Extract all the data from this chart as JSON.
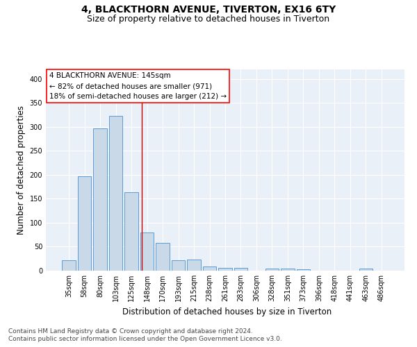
{
  "title": "4, BLACKTHORN AVENUE, TIVERTON, EX16 6TY",
  "subtitle": "Size of property relative to detached houses in Tiverton",
  "xlabel": "Distribution of detached houses by size in Tiverton",
  "ylabel": "Number of detached properties",
  "footnote1": "Contains HM Land Registry data © Crown copyright and database right 2024.",
  "footnote2": "Contains public sector information licensed under the Open Government Licence v3.0.",
  "bar_labels": [
    "35sqm",
    "58sqm",
    "80sqm",
    "103sqm",
    "125sqm",
    "148sqm",
    "170sqm",
    "193sqm",
    "215sqm",
    "238sqm",
    "261sqm",
    "283sqm",
    "306sqm",
    "328sqm",
    "351sqm",
    "373sqm",
    "396sqm",
    "418sqm",
    "441sqm",
    "463sqm",
    "486sqm"
  ],
  "bar_values": [
    22,
    197,
    297,
    323,
    163,
    80,
    58,
    22,
    23,
    8,
    6,
    6,
    0,
    4,
    4,
    3,
    0,
    0,
    0,
    4,
    0
  ],
  "bar_color": "#c9d9e8",
  "bar_edge_color": "#5b9bd5",
  "annotation_line1": "4 BLACKTHORN AVENUE: 145sqm",
  "annotation_line2": "← 82% of detached houses are smaller (971)",
  "annotation_line3": "18% of semi-detached houses are larger (212) →",
  "red_line_x": 4.65,
  "ylim": [
    0,
    420
  ],
  "yticks": [
    0,
    50,
    100,
    150,
    200,
    250,
    300,
    350,
    400
  ],
  "background_color": "#eaf0f7",
  "grid_color": "#ffffff",
  "title_fontsize": 10,
  "subtitle_fontsize": 9,
  "xlabel_fontsize": 8.5,
  "ylabel_fontsize": 8.5,
  "tick_fontsize": 7,
  "annotation_fontsize": 7.5,
  "footnote_fontsize": 6.5
}
